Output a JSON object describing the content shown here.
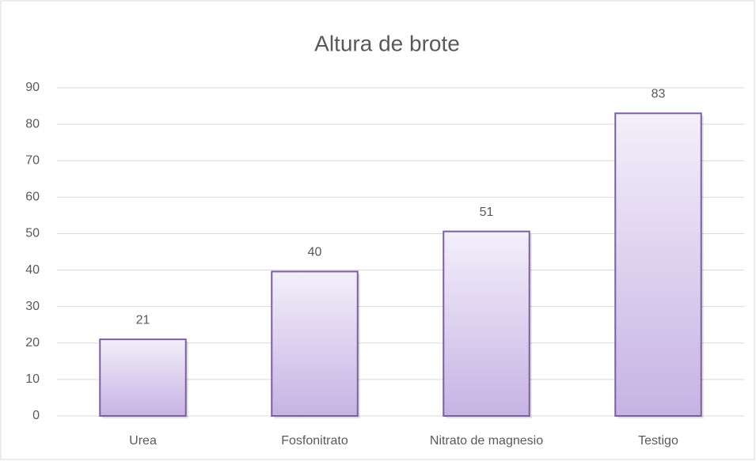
{
  "chart_data": {
    "type": "bar",
    "title": "Altura de brote",
    "categories": [
      "Urea",
      "Fosfonitrato",
      "Nitrato de magnesio",
      "Testigo"
    ],
    "values": [
      21,
      39.6,
      50.6,
      83
    ],
    "value_labels": [
      "21",
      "40",
      "51",
      "83"
    ],
    "color": "#c4b0e2",
    "ylim": [
      0,
      90
    ],
    "yticks": [
      0,
      10,
      20,
      30,
      40,
      50,
      60,
      70,
      80,
      90
    ],
    "grid": true
  }
}
